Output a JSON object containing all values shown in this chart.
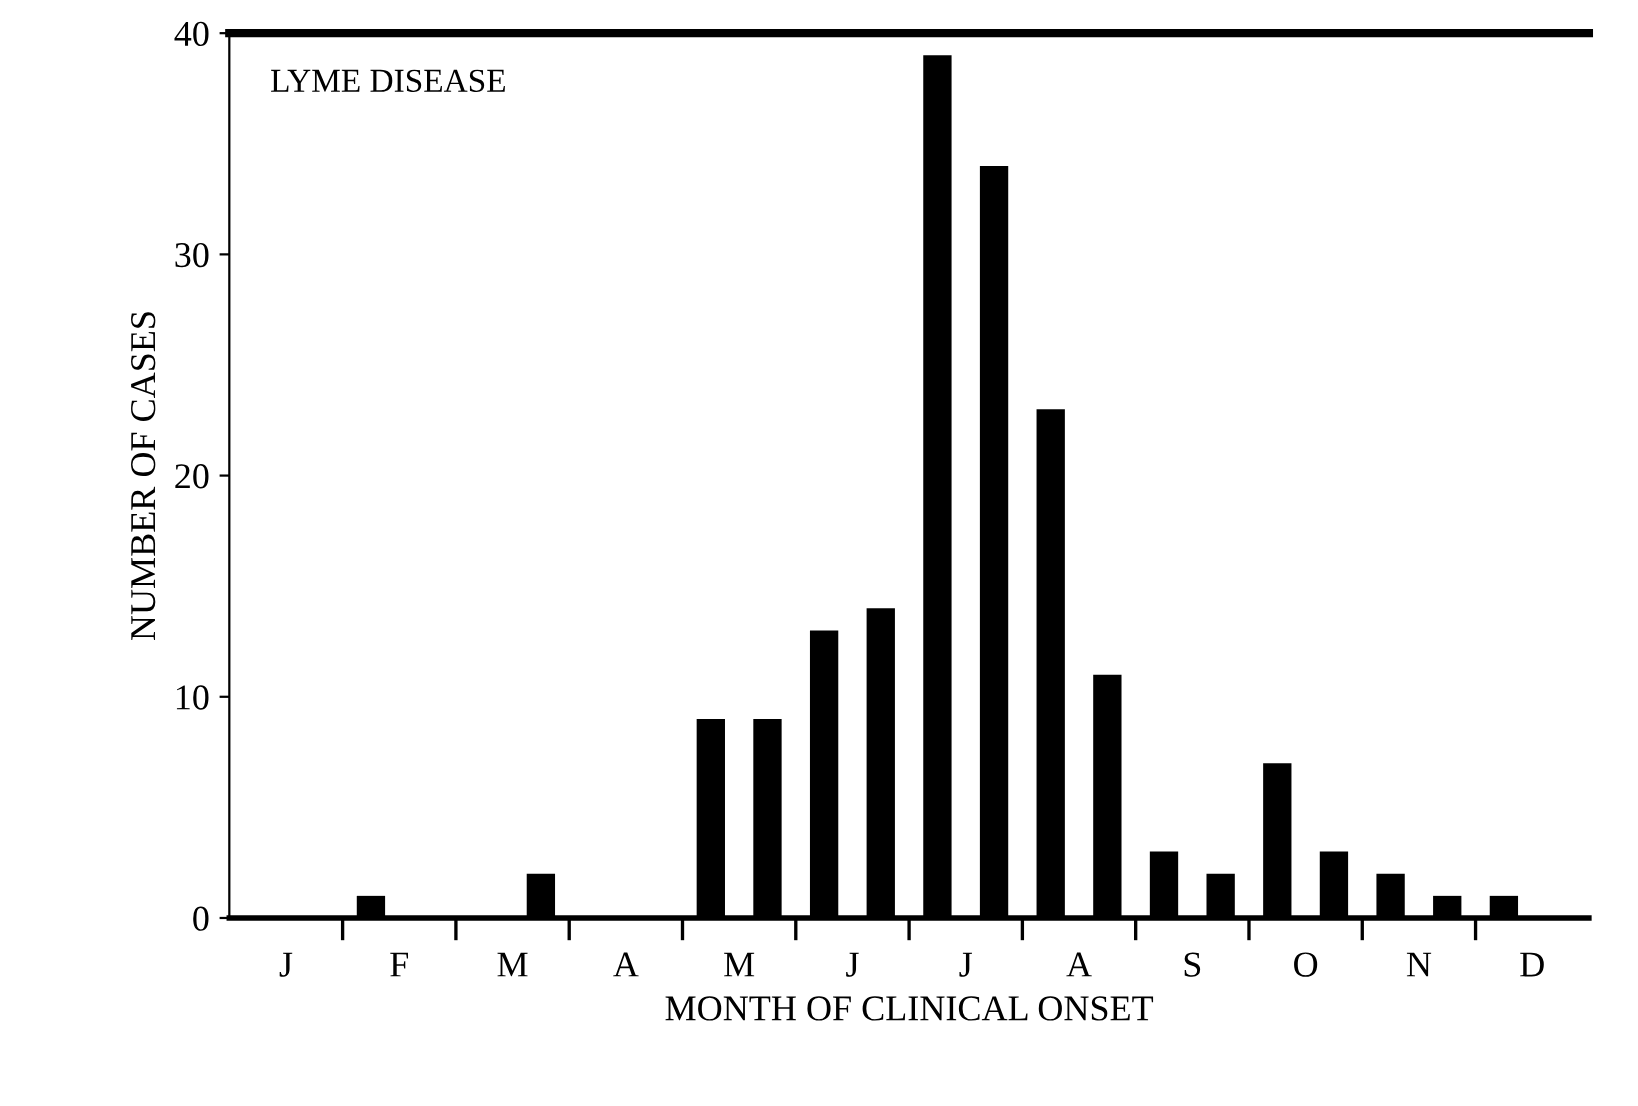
{
  "chart_data": {
    "type": "bar",
    "xlabel": "MONTH OF CLINICAL ONSET",
    "ylabel": "NUMBER OF CASES",
    "annotations": [
      "LYME DISEASE"
    ],
    "categories": [
      "J",
      "F",
      "M",
      "A",
      "M",
      "J",
      "J",
      "A",
      "S",
      "O",
      "N",
      "D"
    ],
    "series": [
      {
        "color": "#000000",
        "values": [
          0,
          1,
          0,
          0,
          9,
          13,
          39,
          23,
          3,
          7,
          2,
          1
        ]
      },
      {
        "color": "#000000",
        "values": [
          0,
          0,
          2,
          0,
          9,
          14,
          34,
          11,
          2,
          3,
          1,
          null
        ]
      }
    ],
    "ylim": [
      0,
      40
    ],
    "yticks": [
      0,
      10,
      20,
      30,
      40
    ],
    "grid": false,
    "legend": false
  }
}
